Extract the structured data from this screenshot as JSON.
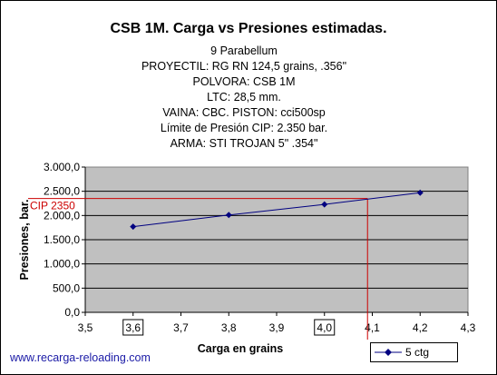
{
  "header": {
    "title": "CSB 1M. Carga vs Presiones estimadas.",
    "lines": [
      "9 Parabellum",
      "PROYECTIL: RG RN 124,5 grains, .356\"",
      "POLVORA: CSB 1M",
      "LTC: 28,5 mm.",
      "VAINA: CBC. PISTON: cci500sp",
      "Límite de Presión CIP: 2.350 bar.",
      "ARMA: STI TROJAN 5\"  .354\""
    ]
  },
  "footer": {
    "link": "www.recarga-reloading.com"
  },
  "colors": {
    "plot_bg": "#c0c0c0",
    "series": "#000080",
    "ref_line": "#cc0000"
  },
  "chart_data": {
    "type": "line",
    "xlabel": "Carga en grains",
    "ylabel": "Presiones, bar.",
    "xlim": [
      3.5,
      4.3
    ],
    "ylim": [
      0,
      3000
    ],
    "x_ticks": [
      "3,5",
      "3,6",
      "3,7",
      "3,8",
      "3,9",
      "4,0",
      "4,1",
      "4,2",
      "4,3"
    ],
    "boxed_x_ticks": [
      "3,6",
      "4,0"
    ],
    "y_ticks": [
      "0,0",
      "500,0",
      "1.000,0",
      "1.500,0",
      "2.000,0",
      "2.500,0",
      "3.000,0"
    ],
    "grid": "horizontal",
    "legend_position": "bottom-right",
    "series": [
      {
        "name": "5 ctg",
        "x": [
          3.6,
          3.8,
          4.0,
          4.2
        ],
        "y": [
          1770,
          2010,
          2230,
          2470
        ]
      }
    ],
    "reference": {
      "label": "CIP 2350",
      "y": 2350,
      "x": 4.09
    }
  }
}
